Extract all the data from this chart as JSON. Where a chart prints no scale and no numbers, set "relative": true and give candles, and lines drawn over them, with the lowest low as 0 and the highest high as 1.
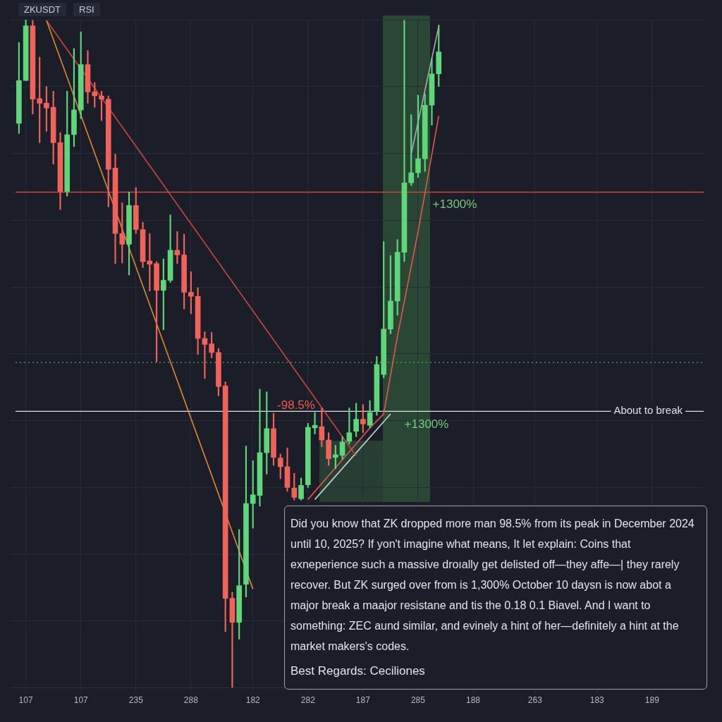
{
  "chart_data": {
    "type": "candlestick",
    "title": "ZKUSDT",
    "subtitle": "RSI",
    "relative": true,
    "categories": [
      null,
      "107",
      null,
      null,
      null,
      null,
      null,
      null,
      null,
      "107",
      null,
      null,
      null,
      null,
      null,
      null,
      null,
      "235",
      null,
      null,
      null,
      null,
      null,
      null,
      null,
      "288",
      null,
      null,
      null,
      null,
      null,
      null,
      null,
      null,
      "182",
      null,
      null,
      null,
      null,
      null,
      null,
      null,
      "282",
      null,
      null,
      null,
      null,
      null,
      null,
      null,
      "187",
      null,
      null,
      null,
      null,
      null,
      null,
      null,
      "285",
      null,
      null,
      null,
      null,
      null,
      null,
      null,
      "188",
      null,
      null,
      null,
      null,
      null,
      null,
      null,
      null,
      "263",
      null,
      null,
      null,
      null,
      null,
      null,
      null,
      null,
      "183",
      null,
      null,
      null,
      null,
      null,
      null,
      null,
      "189",
      null,
      null,
      null,
      null,
      null,
      null,
      null
    ],
    "ohlc": [
      [
        0.845,
        0.966,
        0.83,
        0.909
      ],
      [
        0.909,
        1.0,
        0.909,
        0.991
      ],
      [
        0.991,
        0.999,
        0.859,
        0.881
      ],
      [
        0.882,
        0.944,
        0.816,
        0.875
      ],
      [
        0.875,
        0.9,
        0.833,
        0.868
      ],
      [
        0.869,
        0.893,
        0.784,
        0.816
      ],
      [
        0.816,
        0.831,
        0.716,
        0.743
      ],
      [
        0.743,
        0.893,
        0.736,
        0.828
      ],
      [
        0.828,
        0.957,
        0.81,
        0.865
      ],
      [
        0.865,
        0.982,
        0.852,
        0.933
      ],
      [
        0.933,
        0.954,
        0.875,
        0.892
      ],
      [
        0.892,
        0.906,
        0.869,
        0.886
      ],
      [
        0.886,
        0.893,
        0.849,
        0.881
      ],
      [
        0.881,
        0.886,
        0.72,
        0.776
      ],
      [
        0.778,
        0.799,
        0.635,
        0.68
      ],
      [
        0.68,
        0.726,
        0.636,
        0.664
      ],
      [
        0.664,
        0.742,
        0.618,
        0.722
      ],
      [
        0.722,
        0.749,
        0.68,
        0.686
      ],
      [
        0.686,
        0.697,
        0.629,
        0.638
      ],
      [
        0.639,
        0.68,
        0.594,
        0.634
      ],
      [
        0.635,
        0.638,
        0.488,
        0.595
      ],
      [
        0.595,
        0.642,
        0.536,
        0.61
      ],
      [
        0.61,
        0.708,
        0.607,
        0.655
      ],
      [
        0.655,
        0.683,
        0.635,
        0.648
      ],
      [
        0.648,
        0.679,
        0.567,
        0.592
      ],
      [
        0.592,
        0.623,
        0.56,
        0.586
      ],
      [
        0.586,
        0.599,
        0.499,
        0.523
      ],
      [
        0.523,
        0.533,
        0.463,
        0.514
      ],
      [
        0.515,
        0.532,
        0.494,
        0.502
      ],
      [
        0.502,
        0.508,
        0.437,
        0.451
      ],
      [
        0.452,
        0.458,
        0.084,
        0.134
      ],
      [
        0.134,
        0.143,
        0.0,
        0.098
      ],
      [
        0.098,
        0.237,
        0.073,
        0.153
      ],
      [
        0.155,
        0.362,
        0.136,
        0.276
      ],
      [
        0.276,
        0.34,
        0.239,
        0.289
      ],
      [
        0.288,
        0.447,
        0.272,
        0.352
      ],
      [
        0.352,
        0.443,
        0.32,
        0.388
      ],
      [
        0.388,
        0.411,
        0.333,
        0.345
      ],
      [
        0.344,
        0.35,
        0.313,
        0.331
      ],
      [
        0.331,
        0.359,
        0.294,
        0.3
      ],
      [
        0.299,
        0.321,
        0.281,
        0.285
      ],
      [
        0.283,
        0.314,
        0.281,
        0.303
      ],
      [
        0.304,
        0.396,
        0.3,
        0.39
      ],
      [
        0.389,
        0.412,
        0.38,
        0.393
      ],
      [
        0.391,
        0.419,
        0.361,
        0.371
      ],
      [
        0.371,
        0.382,
        0.333,
        0.343
      ],
      [
        0.345,
        0.363,
        0.328,
        0.349
      ],
      [
        0.348,
        0.376,
        0.342,
        0.368
      ],
      [
        0.369,
        0.419,
        0.365,
        0.382
      ],
      [
        0.384,
        0.426,
        0.376,
        0.402
      ],
      [
        0.402,
        0.424,
        0.382,
        0.395
      ],
      [
        0.393,
        0.43,
        0.389,
        0.412
      ],
      [
        0.414,
        0.496,
        0.408,
        0.484
      ],
      [
        0.469,
        0.668,
        0.464,
        0.537
      ],
      [
        0.537,
        0.647,
        0.53,
        0.579
      ],
      [
        0.579,
        0.671,
        0.558,
        0.652
      ],
      [
        0.652,
        0.999,
        0.638,
        0.756
      ],
      [
        0.756,
        0.858,
        0.752,
        0.771
      ],
      [
        0.771,
        0.887,
        0.764,
        0.792
      ],
      [
        0.792,
        0.889,
        0.773,
        0.872
      ],
      [
        0.872,
        0.942,
        0.842,
        0.919
      ],
      [
        0.919,
        0.992,
        0.9,
        0.952
      ],
      null,
      null,
      null,
      null,
      null,
      null,
      null,
      null,
      null,
      null,
      null,
      null,
      null,
      null,
      null,
      null,
      null,
      null,
      null,
      null,
      null,
      null,
      null,
      null,
      null,
      null,
      null,
      null,
      null,
      null,
      null,
      null,
      null,
      null,
      null,
      null,
      null,
      null
    ],
    "colors": [
      "#5fd67a",
      "#5fd67a",
      "#f0625a",
      "#f0625a",
      "#f0625a",
      "#f0625a",
      "#f0625a",
      "#5fd67a",
      "#5fd67a",
      "#5fd67a",
      "#f0625a",
      "#f0625a",
      "#f0625a",
      "#f0625a",
      "#f0625a",
      "#f0625a",
      "#5fd67a",
      "#f0625a",
      "#f0625a",
      "#f0625a",
      "#f0625a",
      "#5fd67a",
      "#5fd67a",
      "#f0625a",
      "#f0625a",
      "#f0625a",
      "#f0625a",
      "#f0625a",
      "#f0625a",
      "#f0625a",
      "#f0625a",
      "#f0625a",
      "#5fd67a",
      "#5fd67a",
      "#5fd67a",
      "#5fd67a",
      "#5fd67a",
      "#f0625a",
      "#f0625a",
      "#f0625a",
      "#f0625a",
      "#5fd67a",
      "#5fd67a",
      "#5fd67a",
      "#f0625a",
      "#f0625a",
      "#5fd67a",
      "#5fd67a",
      "#5fd67a",
      "#5fd67a",
      "#f0625a",
      "#5fd67a",
      "#5fd67a",
      "#5fd67a",
      "#5fd67a",
      "#5fd67a",
      "#5fd67a",
      "#5fd67a",
      "#5fd67a",
      "#5fd67a",
      "#5fd67a",
      "#5fd67a",
      null,
      null,
      null,
      null,
      null,
      null,
      null,
      null,
      null,
      null,
      null,
      null,
      null,
      null,
      null,
      null,
      null,
      null,
      null,
      null,
      null,
      null,
      null,
      null,
      null,
      null,
      null,
      null,
      null,
      null,
      null,
      null,
      null,
      null,
      null,
      null,
      null,
      null
    ],
    "grid": true,
    "series": [
      {
        "type": "line",
        "color": "#e0892e",
        "values": [
          null,
          null,
          null,
          null,
          0.999,
          null,
          null,
          null,
          null,
          null,
          null,
          null,
          null,
          null,
          null,
          null,
          null,
          null,
          null,
          null,
          null,
          null,
          null,
          null,
          null,
          null,
          null,
          null,
          null,
          null,
          null,
          null,
          null,
          null,
          0.148,
          null,
          null,
          null,
          null,
          null,
          null,
          null,
          null,
          null,
          null,
          null,
          null,
          null,
          null,
          null,
          null,
          null,
          null,
          null,
          null,
          null,
          null,
          null,
          null,
          null,
          null,
          null,
          null,
          null,
          null,
          null,
          null,
          null,
          null,
          null,
          null,
          null,
          null,
          null,
          null,
          null,
          null,
          null,
          null,
          null,
          null,
          null,
          null,
          null,
          null,
          null,
          null,
          null,
          null,
          null,
          null,
          null,
          null,
          null,
          null,
          null,
          null,
          null,
          null,
          null
        ]
      },
      {
        "type": "line",
        "color": "#c8473f",
        "values": [
          null,
          null,
          null,
          null,
          0.999,
          null,
          null,
          null,
          null,
          null,
          null,
          null,
          null,
          null,
          null,
          null,
          null,
          null,
          null,
          null,
          null,
          null,
          null,
          null,
          null,
          null,
          null,
          null,
          null,
          null,
          null,
          null,
          null,
          null,
          null,
          null,
          null,
          null,
          null,
          null,
          null,
          null,
          null,
          null,
          null,
          null,
          null,
          null,
          null,
          0.347,
          null,
          null,
          null,
          null,
          null,
          null,
          null,
          null,
          null,
          null,
          null,
          null,
          null,
          null,
          null,
          null,
          null,
          null,
          null,
          null,
          null,
          null,
          null,
          null,
          null,
          null,
          null,
          null,
          null,
          null,
          null,
          null,
          null,
          null,
          null,
          null,
          null,
          null,
          null,
          null,
          null,
          null,
          null,
          null,
          null,
          null,
          null,
          null,
          null,
          null
        ]
      },
      {
        "type": "line",
        "color": "#e4574c",
        "values": [
          null,
          null,
          null,
          null,
          null,
          null,
          null,
          null,
          null,
          null,
          null,
          null,
          null,
          null,
          null,
          null,
          null,
          null,
          null,
          null,
          null,
          null,
          null,
          null,
          null,
          null,
          null,
          null,
          null,
          null,
          null,
          null,
          null,
          null,
          null,
          null,
          null,
          null,
          null,
          null,
          null,
          null,
          0.282,
          null,
          null,
          null,
          null,
          null,
          null,
          null,
          null,
          0.389,
          null,
          0.41,
          null,
          0.526,
          null,
          null,
          0.683,
          null,
          null,
          0.856,
          null,
          null,
          null,
          null,
          null,
          null,
          null,
          null,
          null,
          null,
          null,
          null,
          null,
          null,
          null,
          null,
          null,
          null,
          null,
          null,
          null,
          null,
          null,
          null,
          null,
          null,
          null,
          null,
          null,
          null,
          null,
          null,
          null,
          null,
          null,
          null,
          null,
          null
        ]
      },
      {
        "type": "line",
        "color": "#d0d0d0",
        "values": [
          null,
          null,
          null,
          null,
          null,
          null,
          null,
          null,
          null,
          null,
          null,
          null,
          null,
          null,
          null,
          null,
          null,
          null,
          null,
          null,
          null,
          null,
          null,
          null,
          null,
          null,
          null,
          null,
          null,
          null,
          null,
          null,
          null,
          null,
          null,
          null,
          null,
          null,
          null,
          null,
          null,
          null,
          null,
          0.282,
          null,
          null,
          null,
          null,
          null,
          null,
          null,
          null,
          null,
          null,
          0.41,
          null,
          null,
          null,
          null,
          null,
          null,
          null,
          null,
          null,
          null,
          null,
          null,
          null,
          null,
          null,
          null,
          null,
          null,
          null,
          null,
          null,
          null,
          null,
          null,
          null,
          null,
          null,
          null,
          null,
          null,
          null,
          null,
          null,
          null,
          null,
          null,
          null,
          null,
          null,
          null,
          null,
          null,
          null,
          null,
          null
        ]
      },
      {
        "type": "line",
        "color": "#a8a8b0",
        "values": [
          null,
          null,
          null,
          null,
          null,
          null,
          null,
          null,
          null,
          null,
          null,
          null,
          null,
          null,
          null,
          null,
          null,
          null,
          null,
          null,
          null,
          null,
          null,
          null,
          null,
          null,
          null,
          null,
          null,
          null,
          null,
          null,
          null,
          null,
          null,
          null,
          null,
          null,
          null,
          null,
          null,
          null,
          null,
          null,
          null,
          null,
          null,
          null,
          null,
          null,
          null,
          null,
          null,
          null,
          null,
          null,
          null,
          0.799,
          null,
          null,
          null,
          0.99,
          null,
          null,
          null,
          null,
          null,
          null,
          null,
          null,
          null,
          null,
          null,
          null,
          null,
          null,
          null,
          null,
          null,
          null,
          null,
          null,
          null,
          null,
          null,
          null,
          null,
          null,
          null,
          null,
          null,
          null,
          null,
          null,
          null,
          null,
          null,
          null,
          null,
          null
        ]
      }
    ],
    "ref_lines": [
      {
        "axis": "y",
        "value": 0.742,
        "color": "#c8473f",
        "line_style": "solid"
      },
      {
        "axis": "y",
        "value": 0.487,
        "color": "#4caf50",
        "line_style": "dotted"
      },
      {
        "axis": "y",
        "value": 0.414,
        "label": "About to break",
        "color": "#e0e0e0",
        "line_style": "solid"
      }
    ],
    "annotations": [
      "-98.5%",
      "+1300%",
      "+1300%",
      "Did you know that ZK dropped more man 98.5% from its peak in December 2024 until 10, 2025? If yon't imagine what means, It let explain: Coins that exneperience such a massive droıally get delisted off—they affe—| they rarely recover. But ZK surged over from is 1,300% October 10 daysn is now abot a major break a maajor resistane and tis the 0.18 0.1 Biavel. And I want to something: ZEC aund similar, and evinely a hint of her—definitely a hint at the market makers's codes.",
      "Best Regards: Ceciliones"
    ]
  }
}
